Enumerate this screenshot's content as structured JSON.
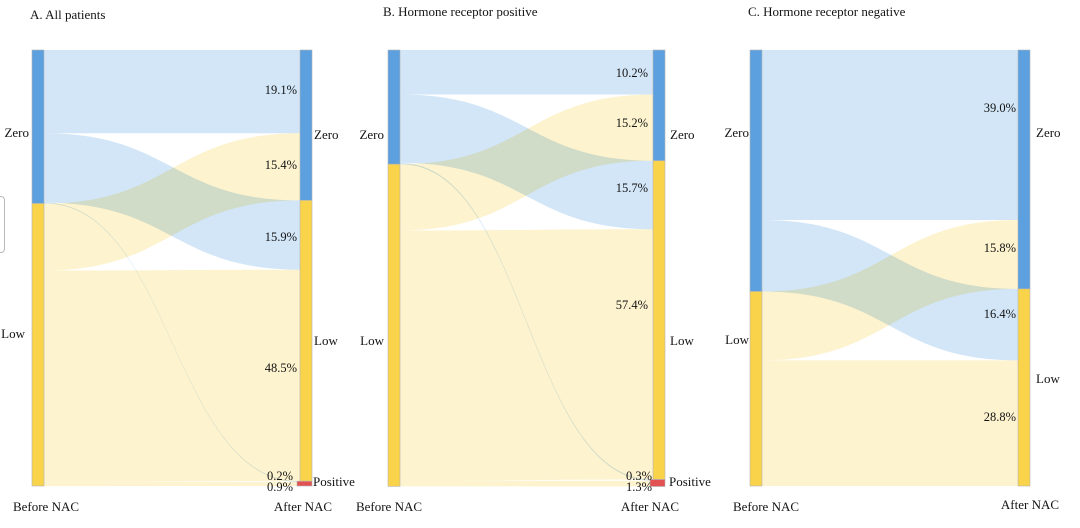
{
  "colors": {
    "node_zero": "#5CA0DF",
    "node_low": "#F9D44B",
    "node_positive": "#E25252",
    "flow_zero": "#D2E6F7",
    "flow_low": "#FDF3CF"
  },
  "chart_data": [
    {
      "id": "a",
      "type": "sankey",
      "title": "A. All patients",
      "x_axis": {
        "before": "Before NAC",
        "after": "After NAC"
      },
      "left_nodes": [
        "Zero",
        "Low"
      ],
      "right_nodes": [
        "Zero",
        "Low",
        "Positive"
      ],
      "flows": [
        {
          "from": "Zero",
          "to": "Zero",
          "pct": 19.1,
          "label": "19.1%"
        },
        {
          "from": "Low",
          "to": "Zero",
          "pct": 15.4,
          "label": "15.4%"
        },
        {
          "from": "Zero",
          "to": "Low",
          "pct": 15.9,
          "label": "15.9%"
        },
        {
          "from": "Low",
          "to": "Low",
          "pct": 48.5,
          "label": "48.5%"
        },
        {
          "from": "Zero",
          "to": "Positive",
          "pct": 0.2,
          "label": "0.2%"
        },
        {
          "from": "Low",
          "to": "Positive",
          "pct": 0.9,
          "label": "0.9%"
        }
      ]
    },
    {
      "id": "b",
      "type": "sankey",
      "title": "B. Hormone receptor positive",
      "x_axis": {
        "before": "Before NAC",
        "after": "After NAC"
      },
      "left_nodes": [
        "Zero",
        "Low"
      ],
      "right_nodes": [
        "Zero",
        "Low",
        "Positive"
      ],
      "flows": [
        {
          "from": "Zero",
          "to": "Zero",
          "pct": 10.2,
          "label": "10.2%"
        },
        {
          "from": "Low",
          "to": "Zero",
          "pct": 15.2,
          "label": "15.2%"
        },
        {
          "from": "Zero",
          "to": "Low",
          "pct": 15.7,
          "label": "15.7%"
        },
        {
          "from": "Low",
          "to": "Low",
          "pct": 57.4,
          "label": "57.4%"
        },
        {
          "from": "Zero",
          "to": "Positive",
          "pct": 0.3,
          "label": "0.3%"
        },
        {
          "from": "Low",
          "to": "Positive",
          "pct": 1.3,
          "label": "1.3%"
        }
      ]
    },
    {
      "id": "c",
      "type": "sankey",
      "title": "C. Hormone receptor negative",
      "x_axis": {
        "before": "Before NAC",
        "after": "After NAC"
      },
      "left_nodes": [
        "Zero",
        "Low"
      ],
      "right_nodes": [
        "Zero",
        "Low"
      ],
      "flows": [
        {
          "from": "Zero",
          "to": "Zero",
          "pct": 39.0,
          "label": "39.0%"
        },
        {
          "from": "Low",
          "to": "Zero",
          "pct": 15.8,
          "label": "15.8%"
        },
        {
          "from": "Zero",
          "to": "Low",
          "pct": 16.4,
          "label": "16.4%"
        },
        {
          "from": "Low",
          "to": "Low",
          "pct": 28.8,
          "label": "28.8%"
        }
      ]
    }
  ]
}
